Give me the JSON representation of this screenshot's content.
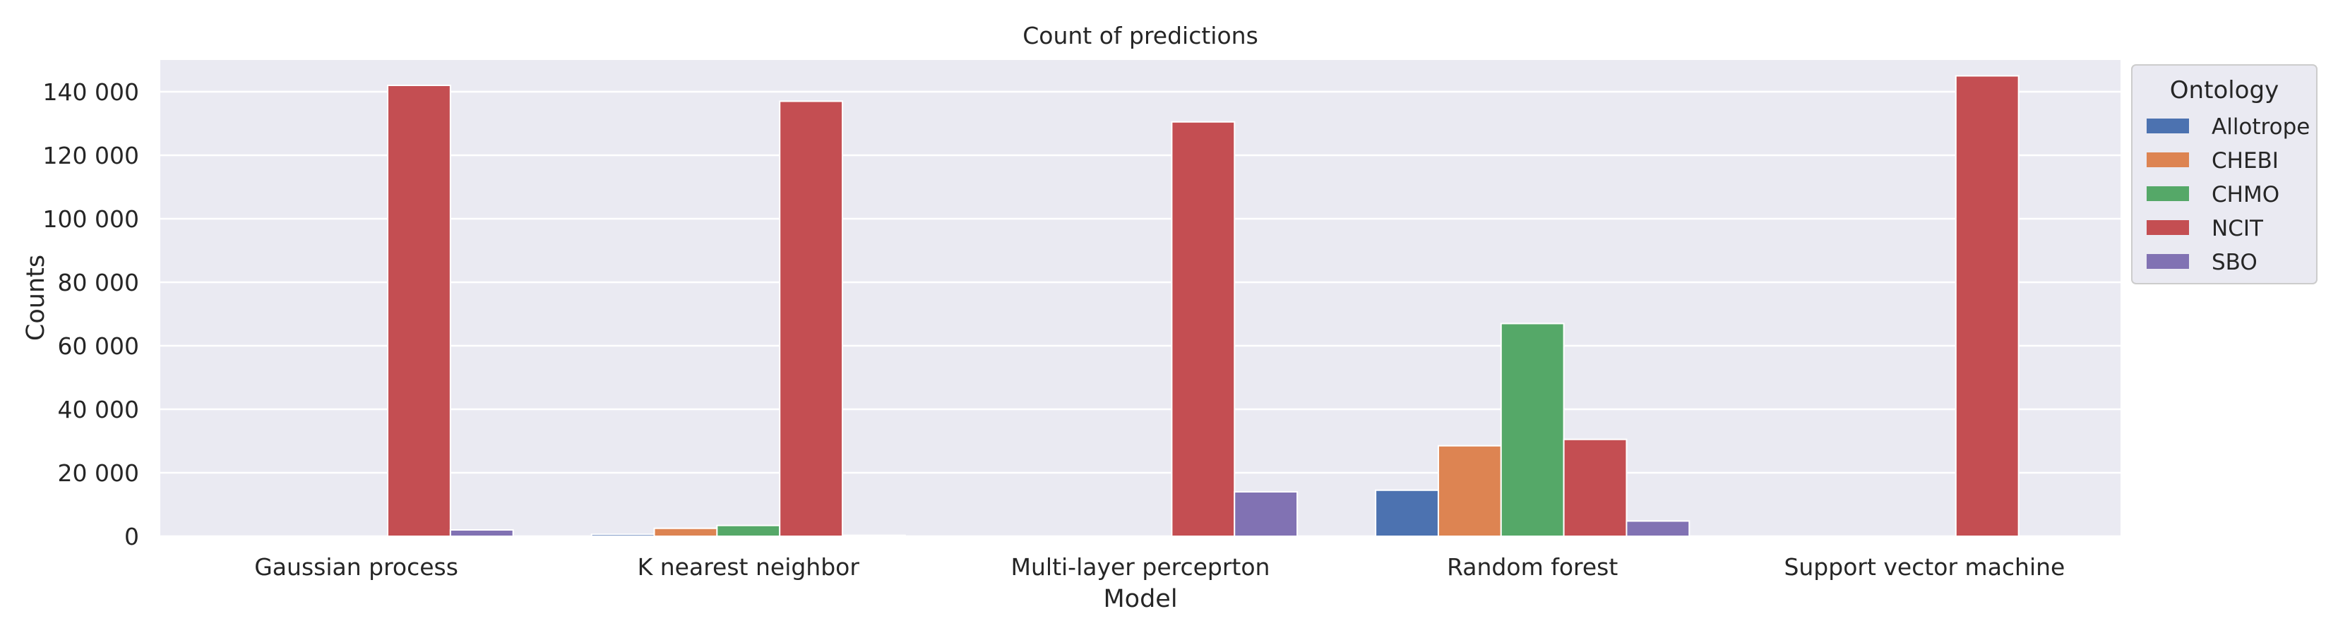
{
  "chart_data": {
    "type": "bar",
    "title": "Count of predictions",
    "xlabel": "Model",
    "ylabel": "Counts",
    "ylim": [
      0,
      150000
    ],
    "yticks": [
      0,
      20000,
      40000,
      60000,
      80000,
      100000,
      120000,
      140000
    ],
    "ytick_labels": [
      "0",
      "20 000",
      "40 000",
      "60 000",
      "80 000",
      "100 000",
      "120 000",
      "140 000"
    ],
    "grid": true,
    "legend": {
      "title": "Ontology",
      "placement": "outside-right-top"
    },
    "categories": [
      "Gaussian process",
      "K nearest neighbor",
      "Multi-layer perceprton",
      "Random forest",
      "Support vector machine"
    ],
    "series": [
      {
        "name": "Allotrope",
        "color": "#4c72b0",
        "values": [
          0,
          600,
          0,
          14500,
          0
        ]
      },
      {
        "name": "CHEBI",
        "color": "#dd8452",
        "values": [
          0,
          2500,
          0,
          28500,
          0
        ]
      },
      {
        "name": "CHMO",
        "color": "#55a868",
        "values": [
          0,
          3400,
          0,
          67000,
          0
        ]
      },
      {
        "name": "NCIT",
        "color": "#c44e52",
        "values": [
          142000,
          137000,
          130500,
          30500,
          145000
        ]
      },
      {
        "name": "SBO",
        "color": "#8172b3",
        "values": [
          2000,
          300,
          14000,
          4800,
          0
        ]
      }
    ]
  }
}
